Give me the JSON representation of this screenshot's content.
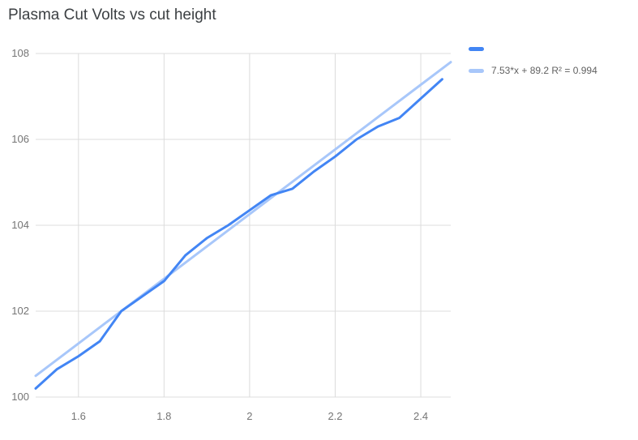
{
  "title": "Plasma Cut Volts vs cut height",
  "legend": {
    "items": [
      {
        "label": ""
      },
      {
        "label": "7.53*x + 89.2 R² = 0.994"
      }
    ]
  },
  "colors": {
    "grid": "#dcdcdc",
    "tick_text": "#757575",
    "title_text": "#3c4043",
    "legend_text": "#616161",
    "background": "#ffffff"
  },
  "chart_data": {
    "type": "line",
    "title": "Plasma Cut Volts vs cut height",
    "xlabel": "",
    "ylabel": "",
    "xlim": [
      1.5,
      2.47
    ],
    "ylim": [
      100,
      108
    ],
    "x_ticks": [
      1.6,
      1.8,
      2,
      2.2,
      2.4
    ],
    "x_tick_labels": [
      "1.6",
      "1.8",
      "2",
      "2.2",
      "2.4"
    ],
    "y_ticks": [
      100,
      102,
      104,
      106,
      108
    ],
    "y_tick_labels": [
      "100",
      "102",
      "104",
      "106",
      "108"
    ],
    "grid": true,
    "legend_position": "top-right",
    "series": [
      {
        "name": "",
        "color": "#4285f4",
        "x": [
          1.5,
          1.55,
          1.6,
          1.65,
          1.7,
          1.75,
          1.8,
          1.85,
          1.9,
          1.95,
          2.0,
          2.05,
          2.1,
          2.15,
          2.2,
          2.25,
          2.3,
          2.35,
          2.4,
          2.45
        ],
        "y": [
          100.2,
          100.65,
          100.95,
          101.3,
          102.0,
          102.35,
          102.7,
          103.3,
          103.7,
          104.0,
          104.35,
          104.7,
          104.85,
          105.25,
          105.6,
          106.0,
          106.3,
          106.5,
          106.95,
          107.4
        ]
      },
      {
        "name": "7.53*x + 89.2 R² = 0.994",
        "type": "trendline",
        "color": "#a8c7fa",
        "slope": 7.53,
        "intercept": 89.2,
        "r_squared": 0.994
      }
    ]
  }
}
